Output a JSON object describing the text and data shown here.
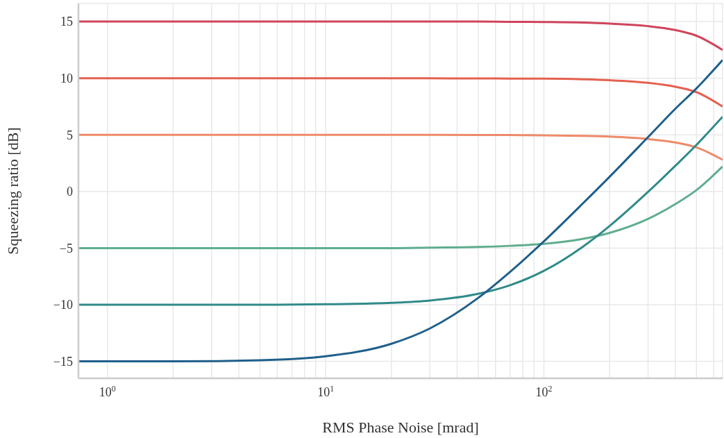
{
  "chart_data": {
    "type": "line",
    "xlabel": "RMS Phase Noise [mrad]",
    "ylabel": "Squeezing ratio [dB]",
    "x": [
      0.736,
      1,
      2,
      5,
      10,
      20,
      30,
      50,
      70,
      100,
      150,
      200,
      300,
      400,
      500,
      659
    ],
    "series": [
      {
        "color": "#d1435b",
        "values": [
          15,
          15,
          15,
          15,
          15,
          15,
          15,
          15,
          14.98,
          14.96,
          14.91,
          14.82,
          14.6,
          14.25,
          13.75,
          12.5
        ]
      },
      {
        "color": "#e5604f",
        "values": [
          10,
          10,
          10,
          10,
          10,
          10,
          9.99,
          9.98,
          9.97,
          9.96,
          9.9,
          9.82,
          9.59,
          9.25,
          8.77,
          7.5
        ]
      },
      {
        "color": "#ee8a6a",
        "values": [
          5,
          5,
          5,
          5,
          5,
          5,
          5,
          4.99,
          4.98,
          4.96,
          4.91,
          4.84,
          4.63,
          4.33,
          3.89,
          2.8
        ]
      },
      {
        "color": "#5fad8e",
        "values": [
          -5,
          -5,
          -5,
          -5,
          -5,
          -5,
          -4.96,
          -4.9,
          -4.8,
          -4.63,
          -4.2,
          -3.66,
          -2.43,
          -1.12,
          0.12,
          2.2
        ]
      },
      {
        "color": "#318a8a",
        "values": [
          -10,
          -10,
          -10,
          -10,
          -9.96,
          -9.83,
          -9.63,
          -9.04,
          -8.28,
          -7.01,
          -4.91,
          -3.05,
          -0.04,
          2.26,
          4.11,
          6.6
        ]
      },
      {
        "color": "#1f5f8b",
        "values": [
          -15,
          -15,
          -15,
          -14.9,
          -14.55,
          -13.45,
          -12.1,
          -9.4,
          -7.1,
          -4.4,
          -1.1,
          1.3,
          4.8,
          7.3,
          9.1,
          11.6
        ]
      }
    ],
    "xlim": [
      0.736,
      659
    ],
    "ylim": [
      -16.5,
      16.6
    ],
    "yticks": [
      -15,
      -10,
      -5,
      0,
      5,
      10,
      15
    ],
    "xticks": [
      {
        "value": 1,
        "label": "10$^{0}$"
      },
      {
        "value": 2,
        "label": null
      },
      {
        "value": 3,
        "label": null
      },
      {
        "value": 4,
        "label": null
      },
      {
        "value": 5,
        "label": null
      },
      {
        "value": 6,
        "label": null
      },
      {
        "value": 7,
        "label": null
      },
      {
        "value": 8,
        "label": null
      },
      {
        "value": 9,
        "label": null
      },
      {
        "value": 10,
        "label": "10$^{1}$"
      },
      {
        "value": 20,
        "label": null
      },
      {
        "value": 30,
        "label": null
      },
      {
        "value": 40,
        "label": null
      },
      {
        "value": 50,
        "label": null
      },
      {
        "value": 60,
        "label": null
      },
      {
        "value": 70,
        "label": null
      },
      {
        "value": 80,
        "label": null
      },
      {
        "value": 90,
        "label": null
      },
      {
        "value": 100,
        "label": "10$^{2}$"
      },
      {
        "value": 200,
        "label": null
      },
      {
        "value": 300,
        "label": null
      },
      {
        "value": 400,
        "label": null
      },
      {
        "value": 500,
        "label": null
      },
      {
        "value": 600,
        "label": null
      }
    ],
    "log": "x",
    "grid": true,
    "legend": false,
    "marker": "none",
    "line_style": "solid"
  }
}
